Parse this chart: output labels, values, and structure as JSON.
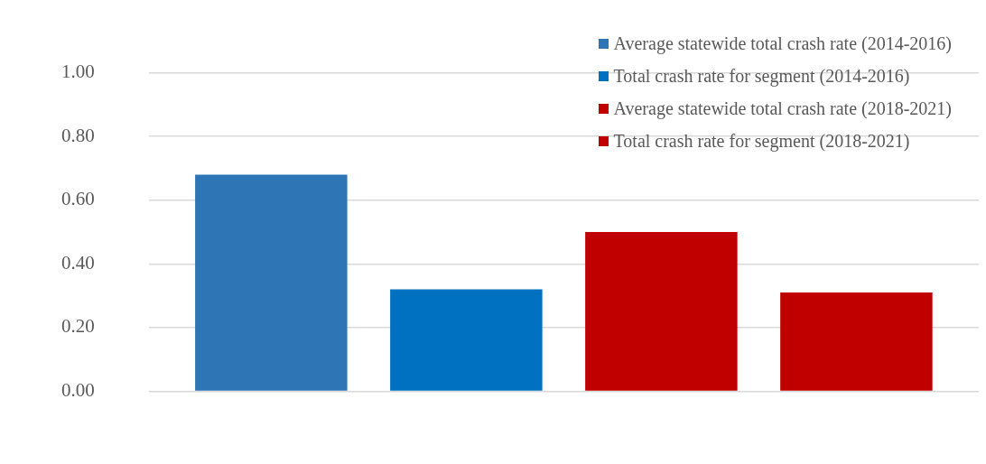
{
  "chart_data": {
    "type": "bar",
    "categories": [
      null
    ],
    "series": [
      {
        "name": "Average statewide total crash rate (2014-2016)",
        "color": "#2e75b6",
        "values": [
          0.68
        ]
      },
      {
        "name": "Total crash rate for segment (2014-2016)",
        "color": "#0070c0",
        "values": [
          0.32
        ]
      },
      {
        "name": "Average statewide total crash rate (2018-2021)",
        "color": "#c00000",
        "values": [
          0.5
        ]
      },
      {
        "name": "Total crash rate for segment (2018-2021)",
        "color": "#c00000",
        "values": [
          0.31
        ]
      }
    ],
    "ylim": [
      0,
      1
    ],
    "yticks": [
      {
        "value": 0,
        "label": "0.00"
      },
      {
        "value": 0.2,
        "label": "0.20"
      },
      {
        "value": 0.4,
        "label": "0.40"
      },
      {
        "value": 0.6,
        "label": "0.60"
      },
      {
        "value": 0.8,
        "label": "0.80"
      },
      {
        "value": 1,
        "label": "1.00"
      }
    ],
    "grid": "y",
    "legend": "top right"
  }
}
